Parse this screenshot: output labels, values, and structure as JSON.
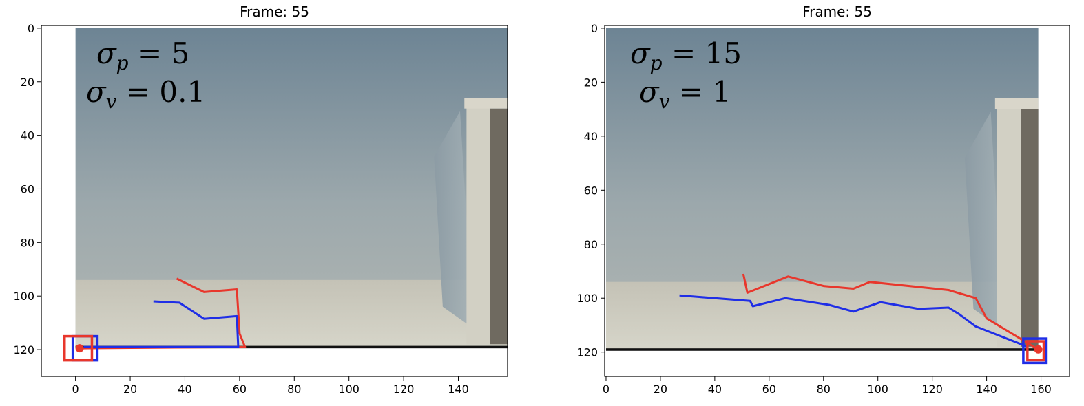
{
  "chart_data": [
    {
      "type": "line",
      "title": "Frame: 55",
      "xlabel": "",
      "ylabel": "",
      "xlim": [
        -12.5,
        158
      ],
      "ylim": [
        130,
        -1
      ],
      "y_inverted": true,
      "grid": false,
      "x_ticks": [
        0,
        20,
        40,
        60,
        80,
        100,
        120,
        140
      ],
      "y_ticks": [
        0,
        20,
        40,
        60,
        80,
        100,
        120
      ],
      "image_extent": {
        "x": [
          0,
          158
        ],
        "y": [
          0,
          119
        ]
      },
      "annotations": [
        {
          "symbol": "σ",
          "sub": "p",
          "text": " = 5",
          "x": 7,
          "y": 12
        },
        {
          "symbol": "σ",
          "sub": "v",
          "text": " = 0.1",
          "x": 4,
          "y": 26
        }
      ],
      "series": [
        {
          "color": "#e8372c",
          "x": [
            37,
            47,
            59,
            60,
            62,
            2
          ],
          "y": [
            93.5,
            98.5,
            97.5,
            114,
            119,
            119.5
          ]
        },
        {
          "color": "#1f2ee6",
          "x": [
            28.5,
            38,
            47,
            59,
            59.5,
            3
          ],
          "y": [
            102,
            102.5,
            108.5,
            107.5,
            119,
            119
          ]
        }
      ],
      "boxes": [
        {
          "color": "#1f2ee6",
          "x": [
            -1,
            8
          ],
          "y": [
            115,
            124
          ]
        },
        {
          "color": "#e8372c",
          "x": [
            -4,
            6
          ],
          "y": [
            115,
            124
          ]
        }
      ],
      "points": [
        {
          "color": "#e8372c",
          "x": 1.5,
          "y": 119.5
        }
      ]
    },
    {
      "type": "line",
      "title": "Frame: 55",
      "xlabel": "",
      "ylabel": "",
      "xlim": [
        -0.5,
        170.5
      ],
      "ylim": [
        129,
        -1
      ],
      "y_inverted": true,
      "grid": false,
      "x_ticks": [
        0,
        20,
        40,
        60,
        80,
        100,
        120,
        140,
        160
      ],
      "y_ticks": [
        0,
        20,
        40,
        60,
        80,
        100,
        120
      ],
      "image_extent": {
        "x": [
          0,
          159
        ],
        "y": [
          0,
          119
        ]
      },
      "annotations": [
        {
          "symbol": "σ",
          "sub": "p",
          "text": " = 15",
          "x": 10,
          "y": 12
        },
        {
          "symbol": "σ",
          "sub": "v",
          "text": " = 1",
          "x": 13,
          "y": 26
        }
      ],
      "series": [
        {
          "color": "#e8372c",
          "x": [
            50.5,
            52,
            67,
            80,
            91,
            97,
            126,
            136,
            140,
            159
          ],
          "y": [
            91,
            98,
            92,
            95.5,
            96.5,
            94,
            97,
            100,
            107.5,
            119
          ]
        },
        {
          "color": "#1f2ee6",
          "x": [
            27,
            53,
            54,
            66,
            82,
            91,
            101,
            115,
            126,
            130,
            136,
            155
          ],
          "y": [
            99,
            101,
            103,
            100,
            102.5,
            105,
            101.5,
            104,
            103.5,
            106,
            110.5,
            118
          ]
        }
      ],
      "boxes": [
        {
          "color": "#1f2ee6",
          "x": [
            153.5,
            162
          ],
          "y": [
            115,
            124
          ]
        },
        {
          "color": "#e8372c",
          "x": [
            155,
            161
          ],
          "y": [
            116,
            123
          ]
        }
      ],
      "points": [
        {
          "color": "#e8372c",
          "x": 159,
          "y": 119
        }
      ]
    }
  ]
}
